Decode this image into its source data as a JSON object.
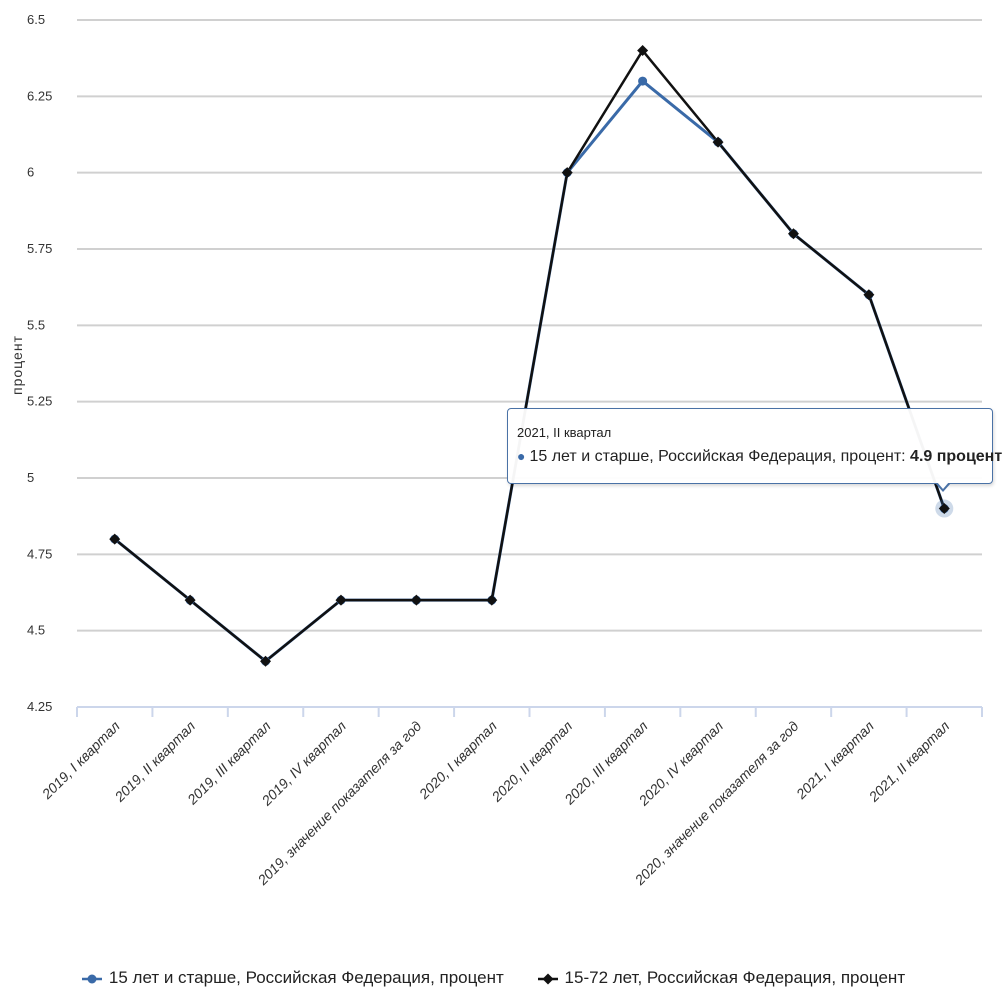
{
  "chart_data": {
    "type": "line",
    "ylabel": "процент",
    "xlabel": "",
    "ylim": [
      4.25,
      6.5
    ],
    "yticks": [
      "6.5",
      "6.25",
      "6",
      "5.75",
      "5.5",
      "5.25",
      "5",
      "4.75",
      "4.5",
      "4.25"
    ],
    "categories": [
      "2019, I квартал",
      "2019, II квартал",
      "2019, III квартал",
      "2019, IV квартал",
      "2019, значение показателя за год",
      "2020, I квартал",
      "2020, II квартал",
      "2020, III квартал",
      "2020, IV квартал",
      "2020, значение показателя за год",
      "2021, I квартал",
      "2021, II квартал"
    ],
    "series": [
      {
        "name": "15 лет и старше, Российская Федерация, процент",
        "color": "#3a6aa8",
        "marker": "circle",
        "values": [
          4.8,
          4.6,
          4.4,
          4.6,
          4.6,
          4.6,
          6.0,
          6.3,
          6.1,
          5.8,
          5.6,
          4.9
        ]
      },
      {
        "name": "15-72 лет, Российская Федерация, процент",
        "color": "#111111",
        "marker": "diamond",
        "values": [
          4.8,
          4.6,
          4.4,
          4.6,
          4.6,
          4.6,
          6.0,
          6.4,
          6.1,
          5.8,
          5.6,
          4.9
        ]
      }
    ],
    "legend_position": "bottom",
    "grid": true
  },
  "tooltip": {
    "title": "2021, II квартал",
    "dot": "●",
    "series_label": "15 лет и старше, Российская Федерация, процент: ",
    "value": "4.9 процент"
  }
}
